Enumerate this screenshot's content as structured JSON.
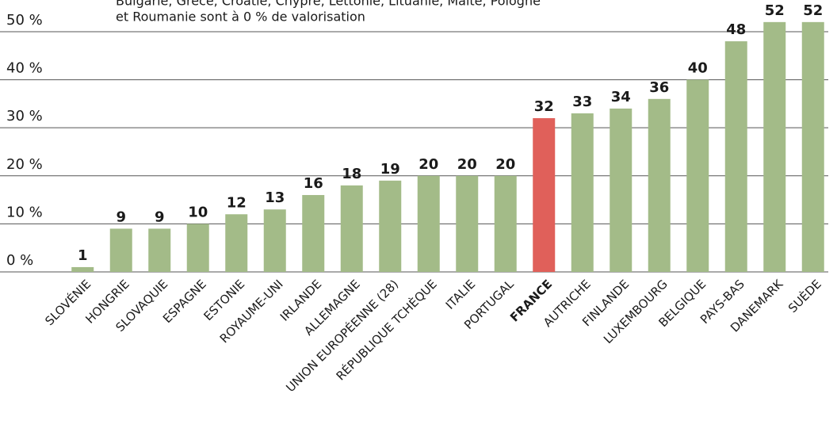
{
  "chart_data": {
    "type": "bar",
    "annotation": [
      "Bulgarie, Grèce, Croatie, Chypre, Lettonie, Lituanie, Malte, Pologne",
      "et Roumanie sont à 0 % de valorisation"
    ],
    "categories": [
      "SLOVÉNIE",
      "HONGRIE",
      "SLOVAQUIE",
      "ESPAGNE",
      "ESTONIE",
      "ROYAUME-UNI",
      "IRLANDE",
      "ALLEMAGNE",
      "UNION EUROPÉENNE (28)",
      "RÉPUBLIQUE TCHÈQUE",
      "ITALIE",
      "PORTUGAL",
      "FRANCE",
      "AUTRICHE",
      "FINLANDE",
      "LUXEMBOURG",
      "BELGIQUE",
      "PAYS-BAS",
      "DANEMARK",
      "SUÈDE"
    ],
    "values": [
      1,
      9,
      9,
      10,
      12,
      13,
      16,
      18,
      19,
      20,
      20,
      20,
      32,
      33,
      34,
      36,
      40,
      48,
      52,
      52
    ],
    "colors": [
      "#a3bb88",
      "#a3bb88",
      "#a3bb88",
      "#a3bb88",
      "#a3bb88",
      "#a3bb88",
      "#a3bb88",
      "#a3bb88",
      "#a3bb88",
      "#a3bb88",
      "#a3bb88",
      "#a3bb88",
      "#e0605a",
      "#a3bb88",
      "#a3bb88",
      "#a3bb88",
      "#a3bb88",
      "#a3bb88",
      "#a3bb88",
      "#a3bb88"
    ],
    "ylim": [
      0,
      56
    ],
    "yticks": [
      {
        "value": 0,
        "label": "0 %"
      },
      {
        "value": 10,
        "label": "10 %"
      },
      {
        "value": 20,
        "label": "20 %"
      },
      {
        "value": 30,
        "label": "30 %"
      },
      {
        "value": 40,
        "label": "40 %"
      },
      {
        "value": 50,
        "label": "50 %"
      }
    ],
    "grid": true
  }
}
